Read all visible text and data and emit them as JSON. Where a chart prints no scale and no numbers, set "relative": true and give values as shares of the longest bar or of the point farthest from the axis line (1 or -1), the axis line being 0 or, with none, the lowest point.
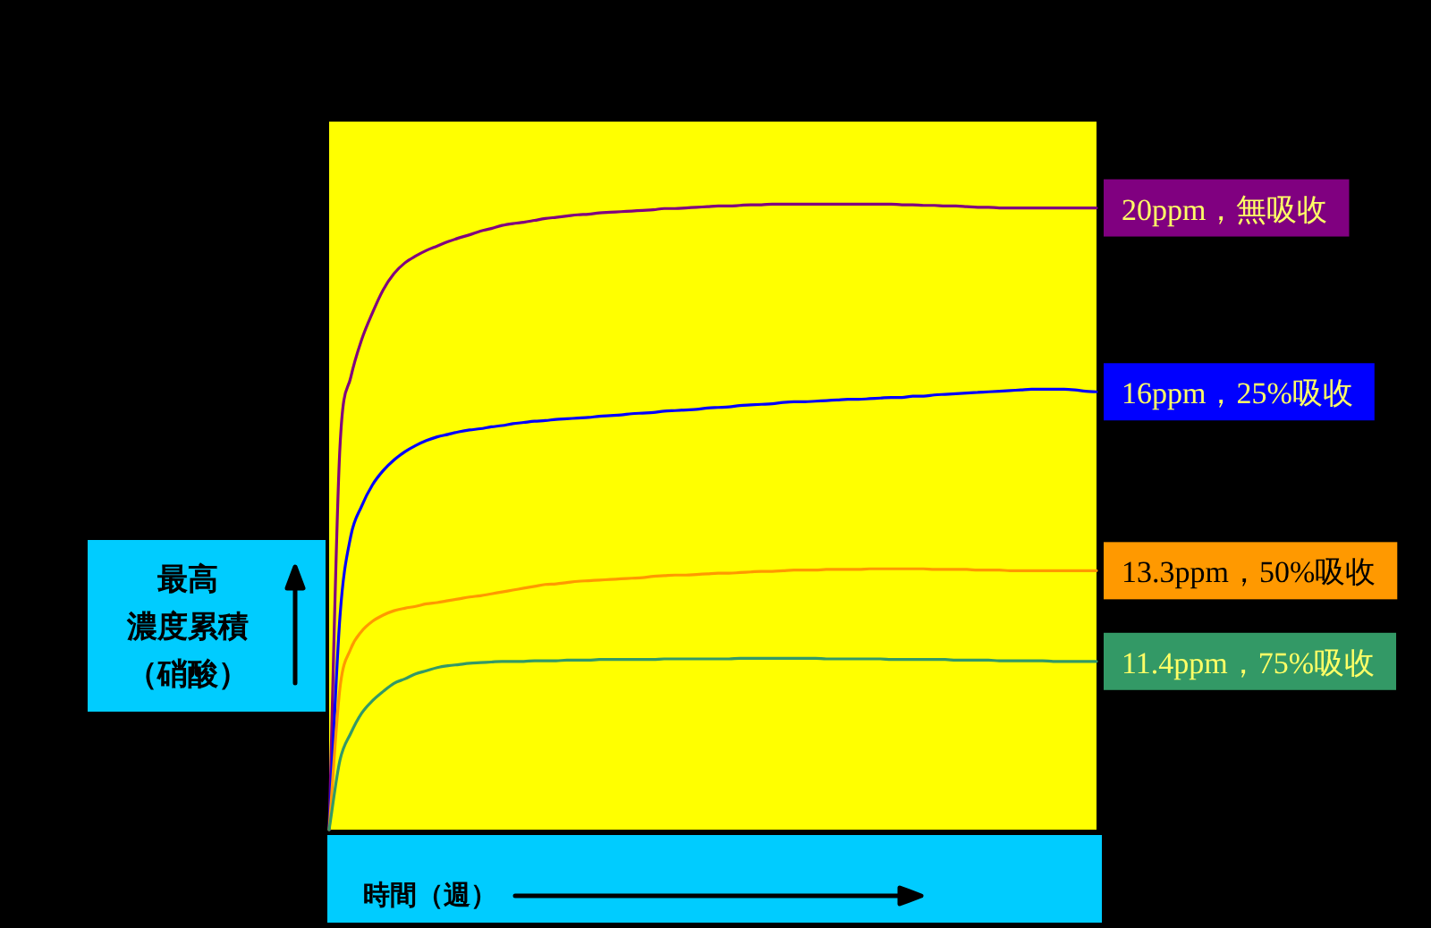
{
  "chart_data": {
    "type": "line",
    "relative": true,
    "xlabel": "時間（週）",
    "ylabel": "最高濃度累積（硝酸）",
    "categories": [
      null,
      null,
      null,
      null,
      null,
      null,
      null,
      null,
      null,
      null,
      null,
      null,
      null,
      null,
      null,
      null,
      null,
      null,
      null,
      null,
      null,
      null,
      null,
      null,
      null,
      null,
      null,
      null,
      null,
      null,
      null,
      null,
      null,
      null,
      null,
      null,
      null,
      null,
      null,
      null,
      null,
      null,
      null,
      null,
      null,
      null,
      null,
      null,
      null,
      null,
      null,
      null,
      null,
      null,
      null,
      null,
      null,
      null,
      null,
      null,
      null,
      null,
      null,
      null,
      null,
      null,
      null,
      null,
      null,
      null,
      null,
      null
    ],
    "series": [
      {
        "name": "20ppm，無吸收",
        "color": "#800080",
        "values": [
          0,
          0.611,
          0.723,
          0.783,
          0.826,
          0.863,
          0.889,
          0.906,
          0.917,
          0.926,
          0.933,
          0.94,
          0.946,
          0.951,
          0.957,
          0.961,
          0.966,
          0.969,
          0.971,
          0.974,
          0.977,
          0.979,
          0.981,
          0.983,
          0.984,
          0.986,
          0.987,
          0.988,
          0.989,
          0.99,
          0.991,
          0.993,
          0.993,
          0.994,
          0.995,
          0.996,
          0.997,
          0.997,
          0.998,
          0.999,
          0.999,
          1,
          1,
          1,
          1,
          1,
          1,
          1,
          1,
          1,
          1,
          1,
          1,
          0.999,
          0.999,
          0.998,
          0.998,
          0.997,
          0.997,
          0.996,
          0.995,
          0.995,
          0.994,
          0.994,
          0.994,
          0.994,
          0.994,
          0.994,
          0.994,
          0.994,
          0.994,
          0.994
        ]
      },
      {
        "name": "16ppm，25%吸收",
        "color": "#0000ff",
        "values": [
          0,
          0.34,
          0.469,
          0.517,
          0.551,
          0.574,
          0.591,
          0.604,
          0.614,
          0.622,
          0.628,
          0.632,
          0.636,
          0.639,
          0.641,
          0.644,
          0.646,
          0.649,
          0.651,
          0.653,
          0.654,
          0.656,
          0.657,
          0.658,
          0.659,
          0.661,
          0.662,
          0.663,
          0.665,
          0.666,
          0.667,
          0.669,
          0.67,
          0.671,
          0.672,
          0.674,
          0.675,
          0.676,
          0.678,
          0.679,
          0.68,
          0.681,
          0.683,
          0.684,
          0.684,
          0.685,
          0.686,
          0.687,
          0.688,
          0.688,
          0.689,
          0.69,
          0.691,
          0.691,
          0.693,
          0.693,
          0.695,
          0.696,
          0.697,
          0.698,
          0.699,
          0.7,
          0.701,
          0.702,
          0.703,
          0.704,
          0.704,
          0.704,
          0.704,
          0.703,
          0.701,
          0.7
        ]
      },
      {
        "name": "13.3ppm，50%吸收",
        "color": "#ff9900",
        "values": [
          0,
          0.226,
          0.289,
          0.317,
          0.333,
          0.343,
          0.35,
          0.354,
          0.357,
          0.361,
          0.363,
          0.366,
          0.369,
          0.372,
          0.374,
          0.377,
          0.38,
          0.383,
          0.386,
          0.389,
          0.392,
          0.393,
          0.395,
          0.397,
          0.398,
          0.399,
          0.4,
          0.401,
          0.402,
          0.403,
          0.405,
          0.406,
          0.407,
          0.407,
          0.408,
          0.409,
          0.41,
          0.41,
          0.411,
          0.412,
          0.413,
          0.413,
          0.414,
          0.415,
          0.415,
          0.415,
          0.416,
          0.416,
          0.416,
          0.416,
          0.417,
          0.417,
          0.417,
          0.417,
          0.417,
          0.417,
          0.416,
          0.416,
          0.416,
          0.416,
          0.415,
          0.415,
          0.415,
          0.414,
          0.414,
          0.414,
          0.414,
          0.414,
          0.414,
          0.414,
          0.414,
          0.414
        ]
      },
      {
        "name": "11.4ppm，75%吸收",
        "color": "#339966",
        "values": [
          0,
          0.111,
          0.154,
          0.186,
          0.206,
          0.221,
          0.234,
          0.241,
          0.249,
          0.254,
          0.259,
          0.262,
          0.264,
          0.266,
          0.267,
          0.268,
          0.269,
          0.269,
          0.269,
          0.27,
          0.27,
          0.27,
          0.271,
          0.271,
          0.271,
          0.272,
          0.272,
          0.272,
          0.272,
          0.272,
          0.272,
          0.273,
          0.273,
          0.273,
          0.273,
          0.273,
          0.273,
          0.273,
          0.274,
          0.274,
          0.274,
          0.274,
          0.274,
          0.274,
          0.274,
          0.274,
          0.273,
          0.273,
          0.273,
          0.273,
          0.273,
          0.273,
          0.272,
          0.272,
          0.272,
          0.272,
          0.272,
          0.272,
          0.271,
          0.271,
          0.271,
          0.271,
          0.27,
          0.27,
          0.27,
          0.27,
          0.27,
          0.269,
          0.269,
          0.269,
          0.269,
          0.269
        ]
      }
    ]
  }
}
